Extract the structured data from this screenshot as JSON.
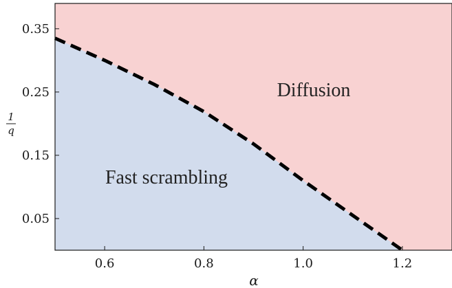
{
  "chart_data": {
    "type": "area",
    "title": "",
    "xlabel": "α",
    "ylabel_num": "1",
    "ylabel_den": "q",
    "xlim": [
      0.5,
      1.3
    ],
    "ylim": [
      0.0,
      0.39
    ],
    "xticks": [
      "0.6",
      "0.8",
      "1.0",
      "1.2"
    ],
    "yticks": [
      "0.05",
      "0.15",
      "0.25",
      "0.35"
    ],
    "grid": false,
    "boundary": {
      "style": "dashed",
      "x": [
        0.5,
        0.6,
        0.7,
        0.8,
        0.9,
        1.0,
        1.1,
        1.2
      ],
      "y": [
        0.335,
        0.3,
        0.262,
        0.219,
        0.168,
        0.11,
        0.055,
        0.0
      ]
    },
    "regions": [
      {
        "label": "Fast scrambling",
        "side": "below",
        "color": "#d2dced"
      },
      {
        "label": "Diffusion",
        "side": "above",
        "color": "#f8d2d2"
      }
    ]
  }
}
